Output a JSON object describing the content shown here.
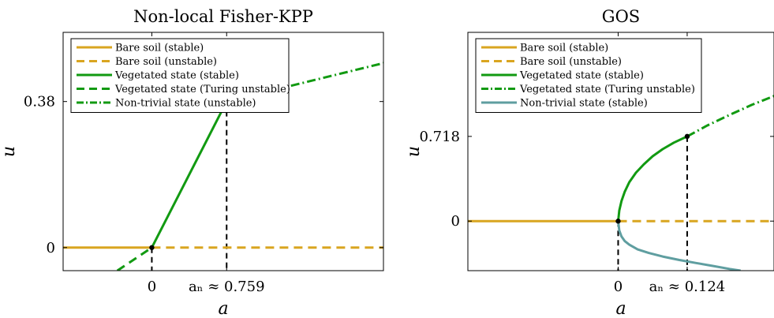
{
  "chart_data": [
    {
      "type": "line",
      "title": "Non-local Fisher-KPP",
      "xlabel": "a",
      "ylabel": "u",
      "xlim": [
        -0.9,
        2.35
      ],
      "ylim": [
        -0.06,
        0.56
      ],
      "xticks": [
        {
          "value": 0,
          "label": "0"
        },
        {
          "value": 0.759,
          "label": "aₙ ≈ 0.759"
        }
      ],
      "yticks": [
        {
          "value": 0,
          "label": "0"
        },
        {
          "value": 0.38,
          "label": "0.38"
        }
      ],
      "legend_position": "top-left",
      "legend": [
        {
          "label": "Bare soil (stable)",
          "color": "#D9A520",
          "style": "solid"
        },
        {
          "label": "Bare soil (unstable)",
          "color": "#D9A520",
          "style": "dashed"
        },
        {
          "label": "Vegetated state (stable)",
          "color": "#129A12",
          "style": "solid"
        },
        {
          "label": "Vegetated state (Turing unstable)",
          "color": "#129A12",
          "style": "dashed"
        },
        {
          "label": "Non-trivial state (unstable)",
          "color": "#129A12",
          "style": "dashdot"
        }
      ],
      "series": [
        {
          "key": "bare_stable",
          "color": "#D9A520",
          "style": "solid",
          "x": [
            -0.9,
            0
          ],
          "y": [
            0,
            0
          ]
        },
        {
          "key": "bare_unstable",
          "color": "#D9A520",
          "style": "dashed",
          "x": [
            0,
            2.35
          ],
          "y": [
            0,
            0
          ]
        },
        {
          "key": "veg_stable",
          "color": "#129A12",
          "style": "solid",
          "x": [
            0,
            0.759
          ],
          "y": [
            0,
            0.38
          ]
        },
        {
          "key": "veg_unstable_low",
          "color": "#129A12",
          "style": "dashed",
          "x": [
            -0.35,
            0
          ],
          "y": [
            -0.06,
            0
          ]
        },
        {
          "key": "nontrivial_unstable",
          "color": "#129A12",
          "style": "dashdot",
          "x": [
            0.759,
            2.35
          ],
          "y": [
            0.38,
            0.48
          ]
        }
      ],
      "points": [
        {
          "x": 0,
          "y": 0
        },
        {
          "x": 0.759,
          "y": 0.38
        }
      ],
      "vlines": [
        {
          "x": 0,
          "y0": -0.06,
          "y1": 0
        },
        {
          "x": 0.759,
          "y0": -0.06,
          "y1": 0.38
        }
      ]
    },
    {
      "type": "line",
      "title": "GOS",
      "xlabel": "a",
      "ylabel": "u",
      "xlim": [
        -0.27,
        0.28
      ],
      "ylim": [
        -0.42,
        1.6
      ],
      "xticks": [
        {
          "value": 0,
          "label": "0"
        },
        {
          "value": 0.124,
          "label": "aₙ ≈ 0.124"
        }
      ],
      "yticks": [
        {
          "value": 0,
          "label": "0"
        },
        {
          "value": 0.718,
          "label": "0.718"
        }
      ],
      "legend_position": "top-left",
      "legend": [
        {
          "label": "Bare soil (stable)",
          "color": "#D9A520",
          "style": "solid"
        },
        {
          "label": "Bare soil (unstable)",
          "color": "#D9A520",
          "style": "dashed"
        },
        {
          "label": "Vegetated state (stable)",
          "color": "#129A12",
          "style": "solid"
        },
        {
          "label": "Vegetated state (Turing unstable)",
          "color": "#129A12",
          "style": "dashdot"
        },
        {
          "label": "Non-trivial state (stable)",
          "color": "#5F9EA0",
          "style": "solid"
        }
      ],
      "series": [
        {
          "key": "bare_stable",
          "color": "#D9A520",
          "style": "solid",
          "x": [
            -0.27,
            0
          ],
          "y": [
            0,
            0
          ]
        },
        {
          "key": "bare_unstable",
          "color": "#D9A520",
          "style": "dashed",
          "x": [
            0,
            0.28
          ],
          "y": [
            0,
            0
          ]
        },
        {
          "key": "veg_stable",
          "color": "#129A12",
          "style": "solid",
          "x": [
            0,
            0.002,
            0.006,
            0.012,
            0.02,
            0.032,
            0.046,
            0.062,
            0.08,
            0.1,
            0.124
          ],
          "y": [
            0,
            0.09,
            0.17,
            0.25,
            0.33,
            0.41,
            0.48,
            0.55,
            0.61,
            0.665,
            0.718
          ]
        },
        {
          "key": "veg_unstable",
          "color": "#129A12",
          "style": "dashdot",
          "x": [
            0.124,
            0.16,
            0.2,
            0.24,
            0.28
          ],
          "y": [
            0.718,
            0.81,
            0.9,
            0.985,
            1.06
          ]
        },
        {
          "key": "nontrivial_stable",
          "color": "#5F9EA0",
          "style": "solid",
          "x": [
            0,
            0.002,
            0.006,
            0.012,
            0.02,
            0.035,
            0.055,
            0.08,
            0.11,
            0.14,
            0.17,
            0.2,
            0.22
          ],
          "y": [
            0,
            -0.08,
            -0.13,
            -0.17,
            -0.2,
            -0.24,
            -0.27,
            -0.3,
            -0.33,
            -0.355,
            -0.38,
            -0.405,
            -0.42
          ]
        }
      ],
      "points": [
        {
          "x": 0,
          "y": 0
        },
        {
          "x": 0.124,
          "y": 0.718
        }
      ],
      "vlines": [
        {
          "x": 0,
          "y0": -0.42,
          "y1": 0
        },
        {
          "x": 0.124,
          "y0": -0.42,
          "y1": 0.718
        }
      ]
    }
  ]
}
